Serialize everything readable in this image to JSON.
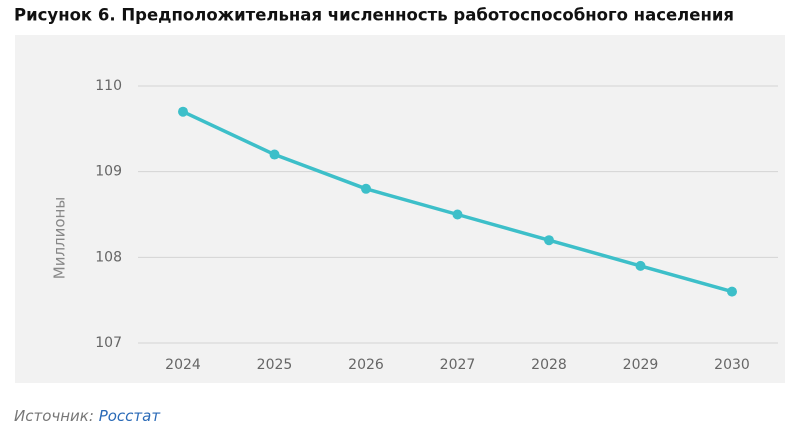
{
  "chart_data": {
    "type": "line",
    "title": "Рисунок 6. Предположительная численность работоспособного населения",
    "y_label": "Миллионы",
    "categories": [
      "2024",
      "2025",
      "2026",
      "2027",
      "2028",
      "2029",
      "2030"
    ],
    "values": [
      109.7,
      109.2,
      108.8,
      108.5,
      108.2,
      107.9,
      107.6
    ],
    "color": "#3dbfc9",
    "ylim": [
      107,
      110
    ],
    "yticks": [
      107,
      108,
      109,
      110
    ],
    "grid": true,
    "source_label": "Источник:",
    "source_name": "Росстат"
  }
}
